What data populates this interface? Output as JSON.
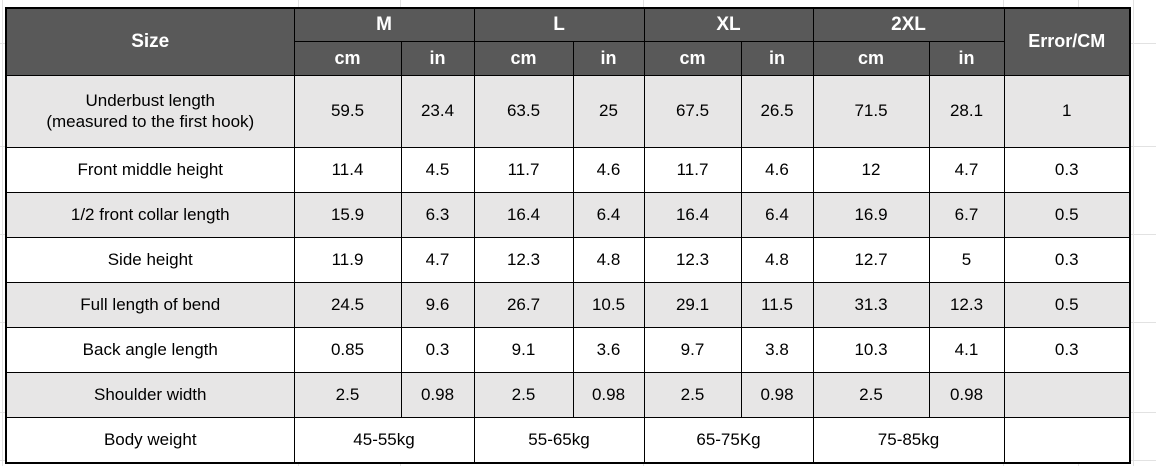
{
  "colors": {
    "header_bg": "#595959",
    "header_text": "#ffffff",
    "stripe": "#e7e6e6",
    "border": "#000000"
  },
  "table": {
    "corner_label": "Size",
    "error_label": "Error/CM",
    "size_groups": [
      {
        "label": "M"
      },
      {
        "label": "L"
      },
      {
        "label": "XL"
      },
      {
        "label": "2XL"
      }
    ],
    "units": [
      "cm",
      "in"
    ],
    "rows": [
      {
        "label_lines": [
          "Underbust length",
          "(measured to the first hook)"
        ],
        "values": [
          "59.5",
          "23.4",
          "63.5",
          "25",
          "67.5",
          "26.5",
          "71.5",
          "28.1"
        ],
        "error": "1",
        "shaded": true
      },
      {
        "label_lines": [
          "Front middle height"
        ],
        "values": [
          "11.4",
          "4.5",
          "11.7",
          "4.6",
          "11.7",
          "4.6",
          "12",
          "4.7"
        ],
        "error": "0.3",
        "shaded": false
      },
      {
        "label_lines": [
          "1/2 front collar length"
        ],
        "values": [
          "15.9",
          "6.3",
          "16.4",
          "6.4",
          "16.4",
          "6.4",
          "16.9",
          "6.7"
        ],
        "error": "0.5",
        "shaded": true
      },
      {
        "label_lines": [
          "Side height"
        ],
        "values": [
          "11.9",
          "4.7",
          "12.3",
          "4.8",
          "12.3",
          "4.8",
          "12.7",
          "5"
        ],
        "error": "0.3",
        "shaded": false
      },
      {
        "label_lines": [
          "Full length of bend"
        ],
        "values": [
          "24.5",
          "9.6",
          "26.7",
          "10.5",
          "29.1",
          "11.5",
          "31.3",
          "12.3"
        ],
        "error": "0.5",
        "shaded": true
      },
      {
        "label_lines": [
          "Back angle length"
        ],
        "values": [
          "0.85",
          "0.3",
          "9.1",
          "3.6",
          "9.7",
          "3.8",
          "10.3",
          "4.1"
        ],
        "error": "0.3",
        "shaded": false
      },
      {
        "label_lines": [
          "Shoulder width"
        ],
        "values": [
          "2.5",
          "0.98",
          "2.5",
          "0.98",
          "2.5",
          "0.98",
          "2.5",
          "0.98"
        ],
        "error": "",
        "shaded": true
      }
    ],
    "weight_row": {
      "label": "Body weight",
      "values": [
        "45-55kg",
        "55-65kg",
        "65-75Kg",
        "75-85kg"
      ],
      "error": "",
      "shaded": false
    }
  }
}
